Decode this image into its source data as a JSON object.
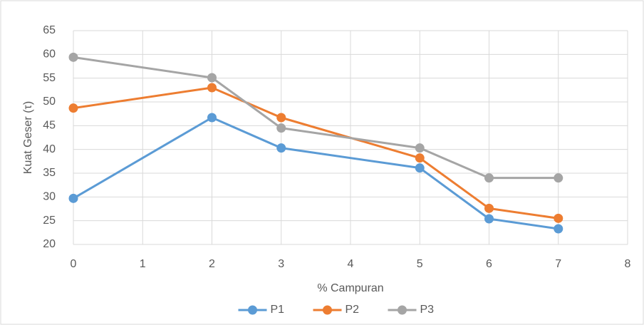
{
  "chart_data": {
    "type": "line",
    "xlabel": "% Campuran",
    "ylabel": "Kuat Geser (τ)",
    "x": [
      0,
      2,
      3,
      5,
      6,
      7
    ],
    "series": [
      {
        "name": "P1",
        "color": "#5b9bd5",
        "values": [
          29.7,
          46.7,
          40.3,
          36.1,
          25.4,
          23.3
        ]
      },
      {
        "name": "P2",
        "color": "#ed7d31",
        "values": [
          48.7,
          53.0,
          46.7,
          38.2,
          27.6,
          25.5
        ]
      },
      {
        "name": "P3",
        "color": "#a5a5a5",
        "values": [
          59.4,
          55.1,
          44.5,
          40.3,
          34.0,
          34.0
        ]
      }
    ],
    "xlim": [
      0,
      8
    ],
    "xticks": [
      0,
      1,
      2,
      3,
      4,
      5,
      6,
      7,
      8
    ],
    "ylim": [
      20,
      65
    ],
    "yticks": [
      20,
      25,
      30,
      35,
      40,
      45,
      50,
      55,
      60,
      65
    ],
    "grid": true,
    "legend": "bottom"
  }
}
